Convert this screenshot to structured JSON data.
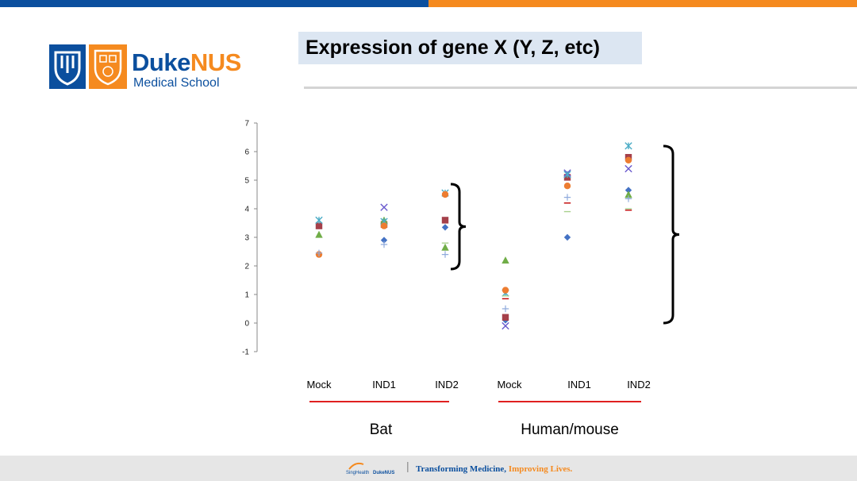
{
  "header": {
    "logo_duke": "Duke",
    "logo_nus": "NUS",
    "logo_sub": "Medical School",
    "title": "Expression of gene X (Y, Z, etc)"
  },
  "footer": {
    "logo_text_a": "SingHealth",
    "logo_text_b": "DukeNUS",
    "tagline_a": "Transforming Medicine, ",
    "tagline_b": "Improving Lives."
  },
  "groups": [
    "Bat",
    "Human/mouse"
  ],
  "chart_data": {
    "type": "scatter",
    "title": "",
    "xlabel": "",
    "ylabel": "",
    "ylim": [
      -1,
      7
    ],
    "yticks": [
      -1,
      0,
      1,
      2,
      3,
      4,
      5,
      6,
      7
    ],
    "categories": [
      "Mock",
      "IND1",
      "IND2",
      "Mock",
      "IND1",
      "IND2"
    ],
    "series": [
      {
        "marker": "diamond",
        "color": "#4472c4",
        "values": [
          null,
          2.9,
          3.35,
          0.1,
          3.0,
          4.65
        ]
      },
      {
        "marker": "square",
        "color": "#a5404a",
        "values": [
          3.4,
          3.45,
          3.6,
          0.2,
          5.1,
          5.8
        ]
      },
      {
        "marker": "triangle",
        "color": "#70ad47",
        "values": [
          3.1,
          3.6,
          2.65,
          2.2,
          null,
          4.5
        ]
      },
      {
        "marker": "x",
        "color": "#6a5acd",
        "values": [
          null,
          4.05,
          null,
          -0.1,
          5.25,
          5.4
        ]
      },
      {
        "marker": "asterisk",
        "color": "#4bacc6",
        "values": [
          3.6,
          3.55,
          4.55,
          1.05,
          5.2,
          6.2
        ]
      },
      {
        "marker": "circle",
        "color": "#ed7d31",
        "values": [
          2.4,
          3.4,
          4.5,
          1.15,
          4.8,
          5.7
        ]
      },
      {
        "marker": "plus",
        "color": "#8faadc",
        "values": [
          2.45,
          2.75,
          2.4,
          0.5,
          4.4,
          4.35
        ]
      },
      {
        "marker": "dash",
        "color": "#a9d18e",
        "values": [
          null,
          null,
          2.8,
          0.95,
          3.9,
          4.0
        ]
      },
      {
        "marker": "dash",
        "color": "#c00000",
        "values": [
          null,
          null,
          null,
          0.85,
          4.2,
          3.95
        ]
      }
    ]
  }
}
